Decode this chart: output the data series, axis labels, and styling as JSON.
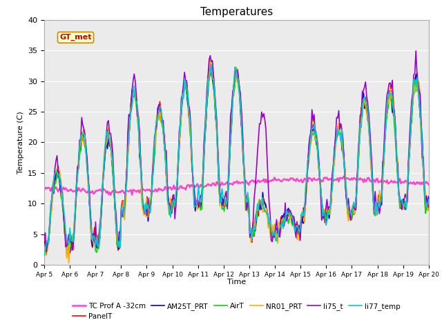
{
  "title": "Temperatures",
  "xlabel": "Time",
  "ylabel": "Temperature (C)",
  "ylim": [
    0,
    40
  ],
  "legend_entries": [
    "PanelT",
    "AM25T_PRT",
    "AirT",
    "NR01_PRT",
    "li75_t",
    "li77_temp",
    "TC Prof A -32cm"
  ],
  "line_colors": [
    "#ff0000",
    "#0000dd",
    "#00dd00",
    "#ffaa00",
    "#9900cc",
    "#00cccc",
    "#ff44cc"
  ],
  "line_widths": [
    1.2,
    1.2,
    1.2,
    1.2,
    1.2,
    1.2,
    1.8
  ],
  "xtick_labels": [
    "Apr 5",
    "Apr 6",
    "Apr 7",
    "Apr 8",
    "Apr 9",
    "Apr 10",
    "Apr 11",
    "Apr 12",
    "Apr 13",
    "Apr 14",
    "Apr 15",
    "Apr 16",
    "Apr 17",
    "Apr 18",
    "Apr 19",
    "Apr 20"
  ],
  "annotation_text": "GT_met",
  "axes_bg_color": "#ebebeb"
}
